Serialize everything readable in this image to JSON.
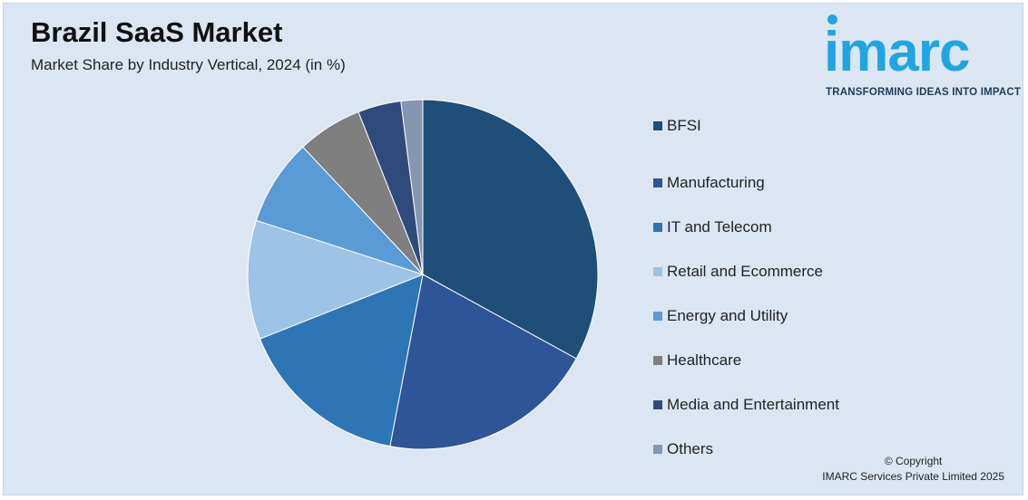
{
  "header": {
    "title": "Brazil SaaS Market",
    "subtitle": "Market Share by Industry Vertical, 2024 (in %)"
  },
  "logo": {
    "wordmark": "imarc",
    "tagline": "TRANSFORMING IDEAS INTO IMPACT",
    "color": "#1fa6e2"
  },
  "footer": {
    "copyright": "© Copyright",
    "owner": "IMARC Services Private Limited 2025"
  },
  "chart_data": {
    "type": "pie",
    "title": "Brazil SaaS Market",
    "subtitle": "Market Share by Industry Vertical, 2024 (in %)",
    "legend_position": "right",
    "start_angle_deg": 0,
    "direction": "clockwise",
    "slices": [
      {
        "label": "BFSI",
        "value": 33,
        "color": "#1f4e79"
      },
      {
        "label": "Manufacturing",
        "value": 20,
        "color": "#2e5597"
      },
      {
        "label": "IT and Telecom",
        "value": 16,
        "color": "#2e75b6"
      },
      {
        "label": "Retail and Ecommerce",
        "value": 11,
        "color": "#9dc3e6"
      },
      {
        "label": "Energy and Utility",
        "value": 8,
        "color": "#5b9bd5"
      },
      {
        "label": "Healthcare",
        "value": 6,
        "color": "#7f7f7f"
      },
      {
        "label": "Media and Entertainment",
        "value": 4,
        "color": "#2f4b7c"
      },
      {
        "label": "Others",
        "value": 2,
        "color": "#8497b0"
      }
    ]
  }
}
